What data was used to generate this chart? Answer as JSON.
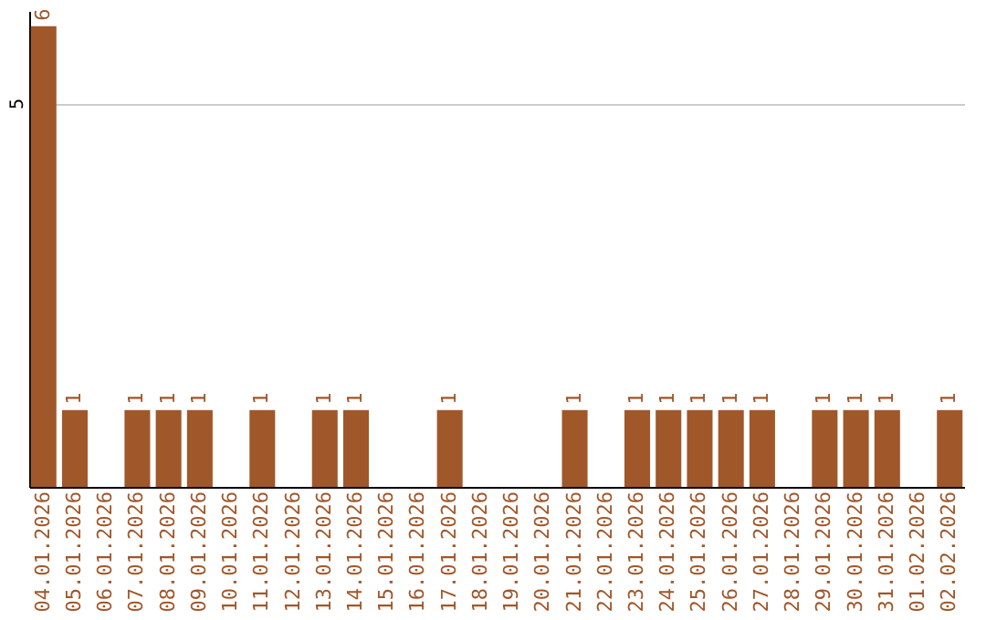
{
  "chart_data": {
    "type": "bar",
    "categories": [
      "04.01.2026",
      "05.01.2026",
      "06.01.2026",
      "07.01.2026",
      "08.01.2026",
      "09.01.2026",
      "10.01.2026",
      "11.01.2026",
      "12.01.2026",
      "13.01.2026",
      "14.01.2026",
      "15.01.2026",
      "16.01.2026",
      "17.01.2026",
      "18.01.2026",
      "19.01.2026",
      "20.01.2026",
      "21.01.2026",
      "22.01.2026",
      "23.01.2026",
      "24.01.2026",
      "25.01.2026",
      "26.01.2026",
      "27.01.2026",
      "28.01.2026",
      "29.01.2026",
      "30.01.2026",
      "31.01.2026",
      "01.02.2026",
      "02.02.2026"
    ],
    "values": [
      6,
      1,
      0,
      1,
      1,
      1,
      0,
      1,
      0,
      1,
      1,
      0,
      0,
      1,
      0,
      0,
      0,
      1,
      0,
      1,
      1,
      1,
      1,
      1,
      0,
      1,
      1,
      1,
      0,
      1
    ],
    "value_labels": [
      "6",
      "1",
      null,
      "1",
      "1",
      "1",
      null,
      "1",
      null,
      "1",
      "1",
      null,
      null,
      "1",
      null,
      null,
      null,
      "1",
      null,
      "1",
      "1",
      "1",
      "1",
      "1",
      null,
      "1",
      "1",
      "1",
      null,
      "1"
    ],
    "color": "#a0572a",
    "ylim": [
      0,
      6.2
    ],
    "yticks": [
      5
    ],
    "grid": "y"
  }
}
